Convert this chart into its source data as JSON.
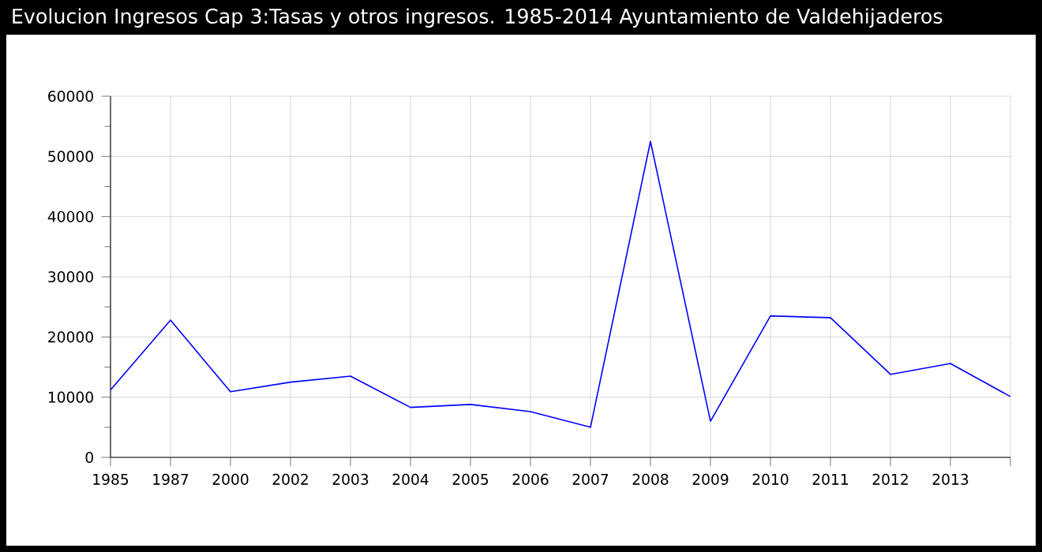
{
  "chart_data": {
    "type": "line",
    "title": "Evolucion Ingresos Cap 3:Tasas y otros ingresos. 1985-2014 Ayuntamiento de Valdehijaderos",
    "categories": [
      "1985",
      "1987",
      "2000",
      "2002",
      "2003",
      "2004",
      "2005",
      "2006",
      "2007",
      "2008",
      "2009",
      "2010",
      "2011",
      "2012",
      "2013",
      null
    ],
    "series": [
      {
        "color": "#0000ff",
        "values": [
          11200,
          22800,
          10900,
          12500,
          13500,
          8300,
          8800,
          7600,
          5000,
          52500,
          6000,
          23500,
          23200,
          13800,
          15600,
          10100
        ]
      }
    ],
    "ylim": [
      0,
      60000
    ],
    "yticks": [
      0,
      10000,
      20000,
      30000,
      40000,
      50000,
      60000
    ],
    "grid": true,
    "marker": "none",
    "line_style": "solid"
  }
}
